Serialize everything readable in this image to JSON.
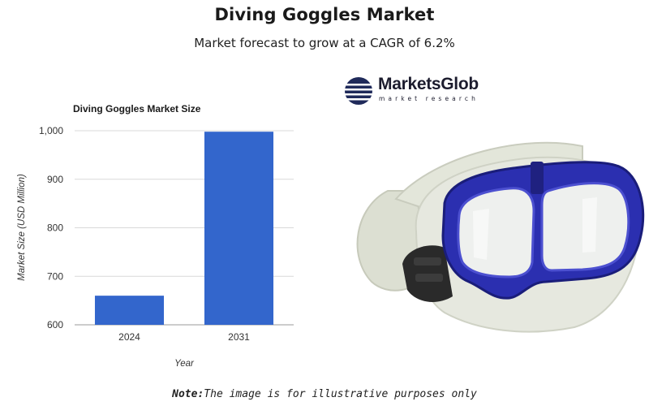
{
  "header": {
    "title": "Diving Goggles Market",
    "subtitle": "Market forecast to grow at a CAGR of 6.2%"
  },
  "chart_data": {
    "type": "bar",
    "title": "Diving Goggles Market Size",
    "categories": [
      "2024",
      "2031"
    ],
    "values": [
      660,
      998
    ],
    "xlabel": "Year",
    "ylabel": "Market Size (USD Million)",
    "ylim": [
      600,
      1000
    ],
    "yticks": [
      "600",
      "700",
      "800",
      "900",
      "1,000"
    ],
    "grid": true,
    "legend": "none",
    "bar_color": "#3366cc"
  },
  "logo": {
    "name": "MarketsGlob",
    "tagline": "market research",
    "icon": "globe-stripes-icon"
  },
  "image": {
    "subject": "diving-goggles-icon",
    "colors": {
      "frame": "#2b2fb0",
      "strap": "#d9dccd",
      "buckle": "#222222"
    }
  },
  "note": {
    "label": "Note:",
    "text": "The image is for illustrative purposes only"
  }
}
